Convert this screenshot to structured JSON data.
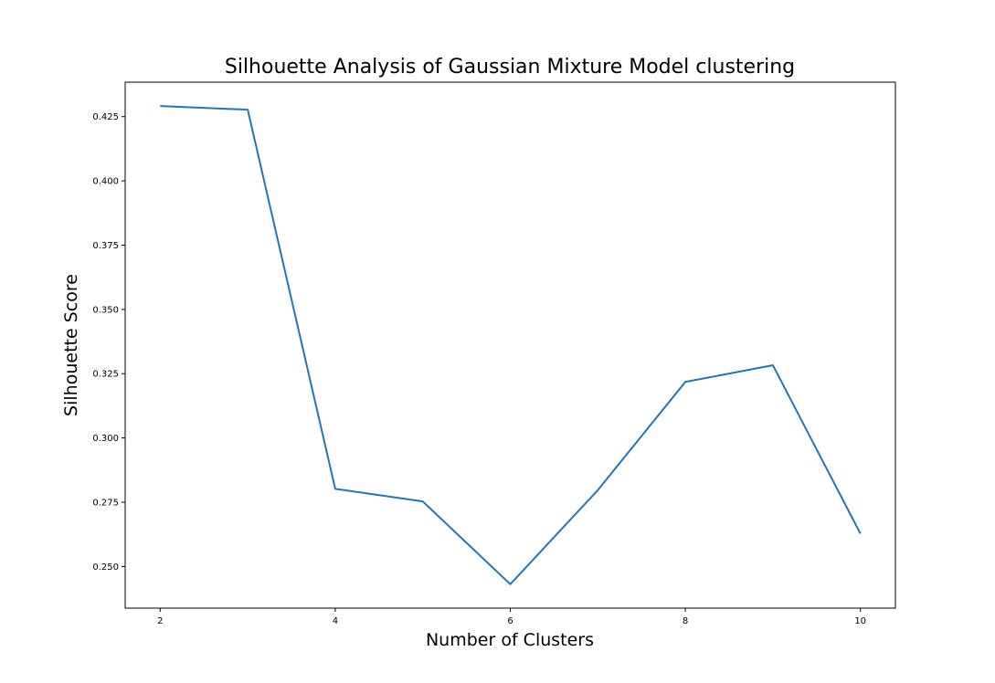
{
  "chart_data": {
    "type": "line",
    "title": "Silhouette Analysis of Gaussian Mixture Model clustering",
    "xlabel": "Number of Clusters",
    "ylabel": "Silhouette Score",
    "x": [
      2,
      3,
      4,
      5,
      6,
      7,
      8,
      9,
      10
    ],
    "series": [
      {
        "values": [
          0.4291,
          0.4277,
          0.2802,
          0.2753,
          0.2431,
          0.2797,
          0.3218,
          0.3283,
          0.2628
        ],
        "color": "#1f77b4"
      }
    ],
    "xticks": [
      2,
      4,
      6,
      8,
      10
    ],
    "xtick_labels": [
      "2",
      "4",
      "6",
      "8",
      "10"
    ],
    "yticks": [
      0.25,
      0.275,
      0.3,
      0.325,
      0.35,
      0.375,
      0.4,
      0.425
    ],
    "ytick_labels": [
      "0.250",
      "0.275",
      "0.300",
      "0.325",
      "0.350",
      "0.375",
      "0.400",
      "0.425"
    ],
    "xlim": [
      1.6,
      10.4
    ],
    "ylim": [
      0.2338,
      0.4384
    ],
    "grid": false,
    "legend": false
  }
}
